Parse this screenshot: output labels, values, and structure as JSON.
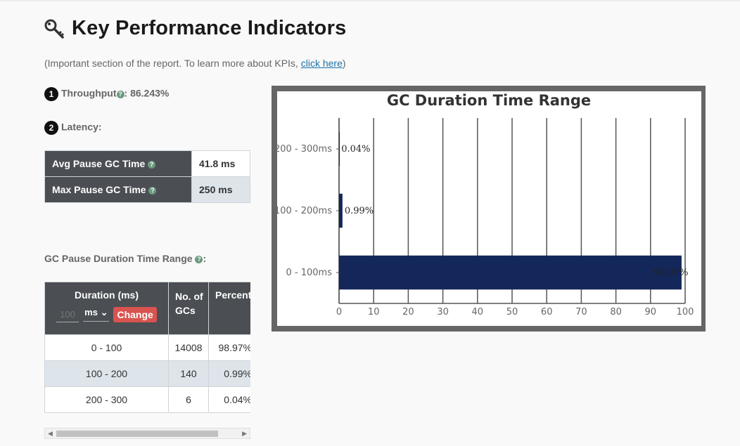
{
  "header": {
    "title": "Key Performance Indicators",
    "intro_prefix": "(Important section of the report. To learn more about KPIs, ",
    "intro_link": "click here",
    "intro_suffix": ")"
  },
  "throughput": {
    "number": "1",
    "label": "Throughput",
    "value": ": 86.243%"
  },
  "latency": {
    "number": "2",
    "label": "Latency:",
    "rows": [
      {
        "label": "Avg Pause GC Time",
        "value": "41.8 ms"
      },
      {
        "label": "Max Pause GC Time",
        "value": "250 ms"
      }
    ]
  },
  "gc_range": {
    "label": "GC Pause Duration Time Range",
    "label_suffix": ":",
    "headers": {
      "duration": "Duration (ms)",
      "count": "No. of GCs",
      "percent": "Percent"
    },
    "controls": {
      "bucket_placeholder": "100",
      "unit": "ms",
      "unit_arrow": "⌄",
      "change_label": "Change"
    },
    "rows": [
      {
        "range": "0 - 100",
        "count": "14008",
        "percent": "98.97%"
      },
      {
        "range": "100 - 200",
        "count": "140",
        "percent": "0.99%"
      },
      {
        "range": "200 - 300",
        "count": "6",
        "percent": "0.04%"
      }
    ]
  },
  "scrollbar": {
    "left_arrow": "◀",
    "right_arrow": "▶"
  },
  "chart_data": {
    "type": "bar",
    "orientation": "horizontal",
    "title": "GC Duration Time Range",
    "categories": [
      "0 - 100ms",
      "100 - 200ms",
      "200 - 300ms"
    ],
    "values": [
      98.97,
      0.99,
      0.04
    ],
    "data_labels": [
      "98.97%",
      "0.99%",
      "0.04%"
    ],
    "xlim": [
      0,
      100
    ],
    "xticks": [
      0,
      10,
      20,
      30,
      40,
      50,
      60,
      70,
      80,
      90,
      100
    ],
    "grid": true,
    "bar_color": "#13275a"
  }
}
